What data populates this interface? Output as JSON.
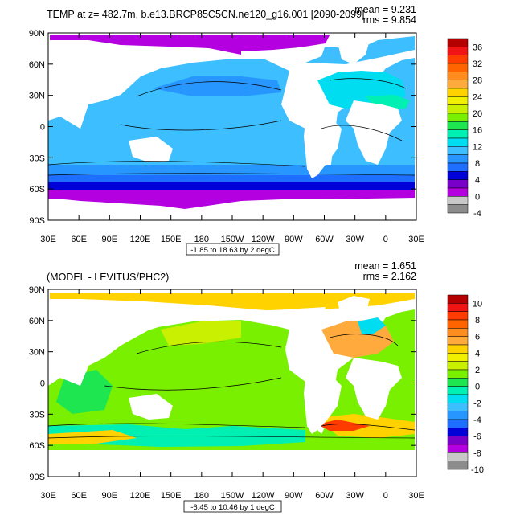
{
  "chart_data": [
    {
      "type": "heatmap",
      "title": "TEMP at z= 482.7m, b.e13.BRCP85C5CN.ne120_g16.001 [2090-2099]",
      "stats": {
        "mean": "mean = 9.231",
        "rms": "rms = 9.854"
      },
      "x_ticks": [
        "30E",
        "60E",
        "90E",
        "120E",
        "150E",
        "180",
        "150W",
        "120W",
        "90W",
        "60W",
        "30W",
        "0",
        "30E"
      ],
      "y_ticks": [
        "90N",
        "60N",
        "30N",
        "0",
        "30S",
        "60S",
        "90S"
      ],
      "range_label": "-1.85 to 18.63 by 2 degC",
      "colorbar": {
        "labels": [
          "36",
          "32",
          "28",
          "24",
          "20",
          "16",
          "12",
          "8",
          "4",
          "0",
          "-4"
        ],
        "colors": [
          "#ffffff",
          "#8c8c8c",
          "#c8c8c8",
          "#b400e0",
          "#7800c8",
          "#0000d8",
          "#1e6eff",
          "#2896ff",
          "#3cbeff",
          "#00dcf0",
          "#00f0b4",
          "#1ee650",
          "#78f000",
          "#c8f000",
          "#f0f000",
          "#ffd200",
          "#ffaa3c",
          "#ff8c1e",
          "#ff6400",
          "#ff3c00",
          "#f01414",
          "#b40000"
        ]
      }
    },
    {
      "type": "heatmap",
      "title": "(MODEL - LEVITUS/PHC2)",
      "stats": {
        "mean": "mean = 1.651",
        "rms": "rms = 2.162"
      },
      "x_ticks": [
        "30E",
        "60E",
        "90E",
        "120E",
        "150E",
        "180",
        "150W",
        "120W",
        "90W",
        "60W",
        "30W",
        "0",
        "30E"
      ],
      "y_ticks": [
        "90N",
        "60N",
        "30N",
        "0",
        "30S",
        "60S",
        "90S"
      ],
      "range_label": "-6.45 to 10.46 by 1 degC",
      "colorbar": {
        "labels": [
          "10",
          "8",
          "6",
          "4",
          "2",
          "0",
          "-2",
          "-4",
          "-6",
          "-8",
          "-10"
        ],
        "colors": [
          "#ffffff",
          "#8c8c8c",
          "#c8c8c8",
          "#b400e0",
          "#7800c8",
          "#0000d8",
          "#1e6eff",
          "#2896ff",
          "#3cbeff",
          "#00dcf0",
          "#00f0b4",
          "#1ee650",
          "#78f000",
          "#c8f000",
          "#f0f000",
          "#ffd200",
          "#ffaa3c",
          "#ff8c1e",
          "#ff6400",
          "#ff3c00",
          "#f01414",
          "#b40000"
        ]
      }
    }
  ]
}
